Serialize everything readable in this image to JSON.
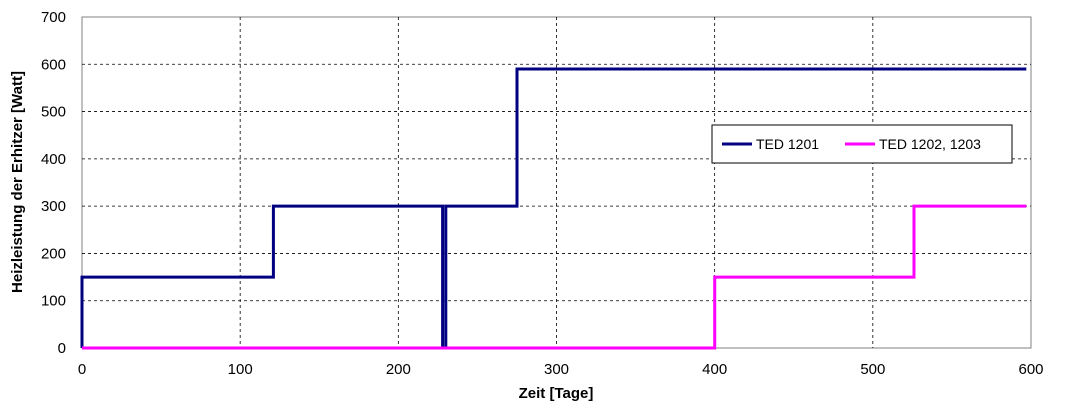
{
  "chart_data": {
    "type": "line",
    "step": true,
    "xlabel": "Zeit [Tage]",
    "ylabel": "Heizleistung der Erhitzer [Watt]",
    "xlim": [
      0,
      600
    ],
    "ylim": [
      0,
      700
    ],
    "xticks": [
      0,
      100,
      200,
      300,
      400,
      500,
      600
    ],
    "yticks": [
      0,
      100,
      200,
      300,
      400,
      500,
      600,
      700
    ],
    "grid": true,
    "legend_position": "right",
    "series": [
      {
        "name": "TED 1201",
        "color": "#000080",
        "points": [
          [
            0,
            0
          ],
          [
            0,
            150
          ],
          [
            121,
            150
          ],
          [
            121,
            300
          ],
          [
            228,
            300
          ],
          [
            228,
            0
          ],
          [
            230,
            0
          ],
          [
            230,
            300
          ],
          [
            275,
            300
          ],
          [
            275,
            590
          ],
          [
            597,
            590
          ]
        ]
      },
      {
        "name": "TED 1202, 1203",
        "color": "#ff00ff",
        "points": [
          [
            0,
            0
          ],
          [
            400,
            0
          ],
          [
            400,
            150
          ],
          [
            526,
            150
          ],
          [
            526,
            300
          ],
          [
            597,
            300
          ]
        ]
      }
    ]
  }
}
